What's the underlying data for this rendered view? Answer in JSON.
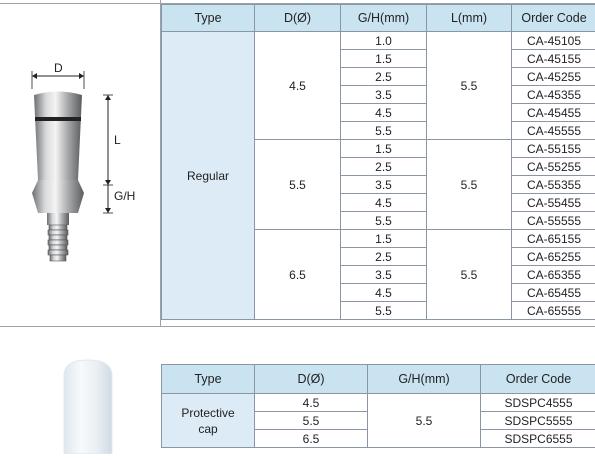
{
  "diagram": {
    "d_label": "D",
    "l_label": "L",
    "gh_label": "G/H"
  },
  "table1": {
    "headers": [
      "Type",
      "D(Ø)",
      "G/H(mm)",
      "L(mm)",
      "Order Code"
    ],
    "type_value": "Regular",
    "groups": [
      {
        "d": "4.5",
        "l": "5.5",
        "rows": [
          {
            "gh": "1.0",
            "code": "CA-45105"
          },
          {
            "gh": "1.5",
            "code": "CA-45155"
          },
          {
            "gh": "2.5",
            "code": "CA-45255"
          },
          {
            "gh": "3.5",
            "code": "CA-45355"
          },
          {
            "gh": "4.5",
            "code": "CA-45455"
          },
          {
            "gh": "5.5",
            "code": "CA-45555"
          }
        ]
      },
      {
        "d": "5.5",
        "l": "5.5",
        "rows": [
          {
            "gh": "1.5",
            "code": "CA-55155"
          },
          {
            "gh": "2.5",
            "code": "CA-55255"
          },
          {
            "gh": "3.5",
            "code": "CA-55355"
          },
          {
            "gh": "4.5",
            "code": "CA-55455"
          },
          {
            "gh": "5.5",
            "code": "CA-55555"
          }
        ]
      },
      {
        "d": "6.5",
        "l": "5.5",
        "rows": [
          {
            "gh": "1.5",
            "code": "CA-65155"
          },
          {
            "gh": "2.5",
            "code": "CA-65255"
          },
          {
            "gh": "3.5",
            "code": "CA-65355"
          },
          {
            "gh": "4.5",
            "code": "CA-65455"
          },
          {
            "gh": "5.5",
            "code": "CA-65555"
          }
        ]
      }
    ]
  },
  "table2": {
    "headers": [
      "Type",
      "D(Ø)",
      "G/H(mm)",
      "Order Code"
    ],
    "type_value": "Protective cap",
    "gh": "5.5",
    "rows": [
      {
        "d": "4.5",
        "code": "SDSPC4555"
      },
      {
        "d": "5.5",
        "code": "SDSPC5555"
      },
      {
        "d": "6.5",
        "code": "SDSPC6555"
      }
    ]
  }
}
